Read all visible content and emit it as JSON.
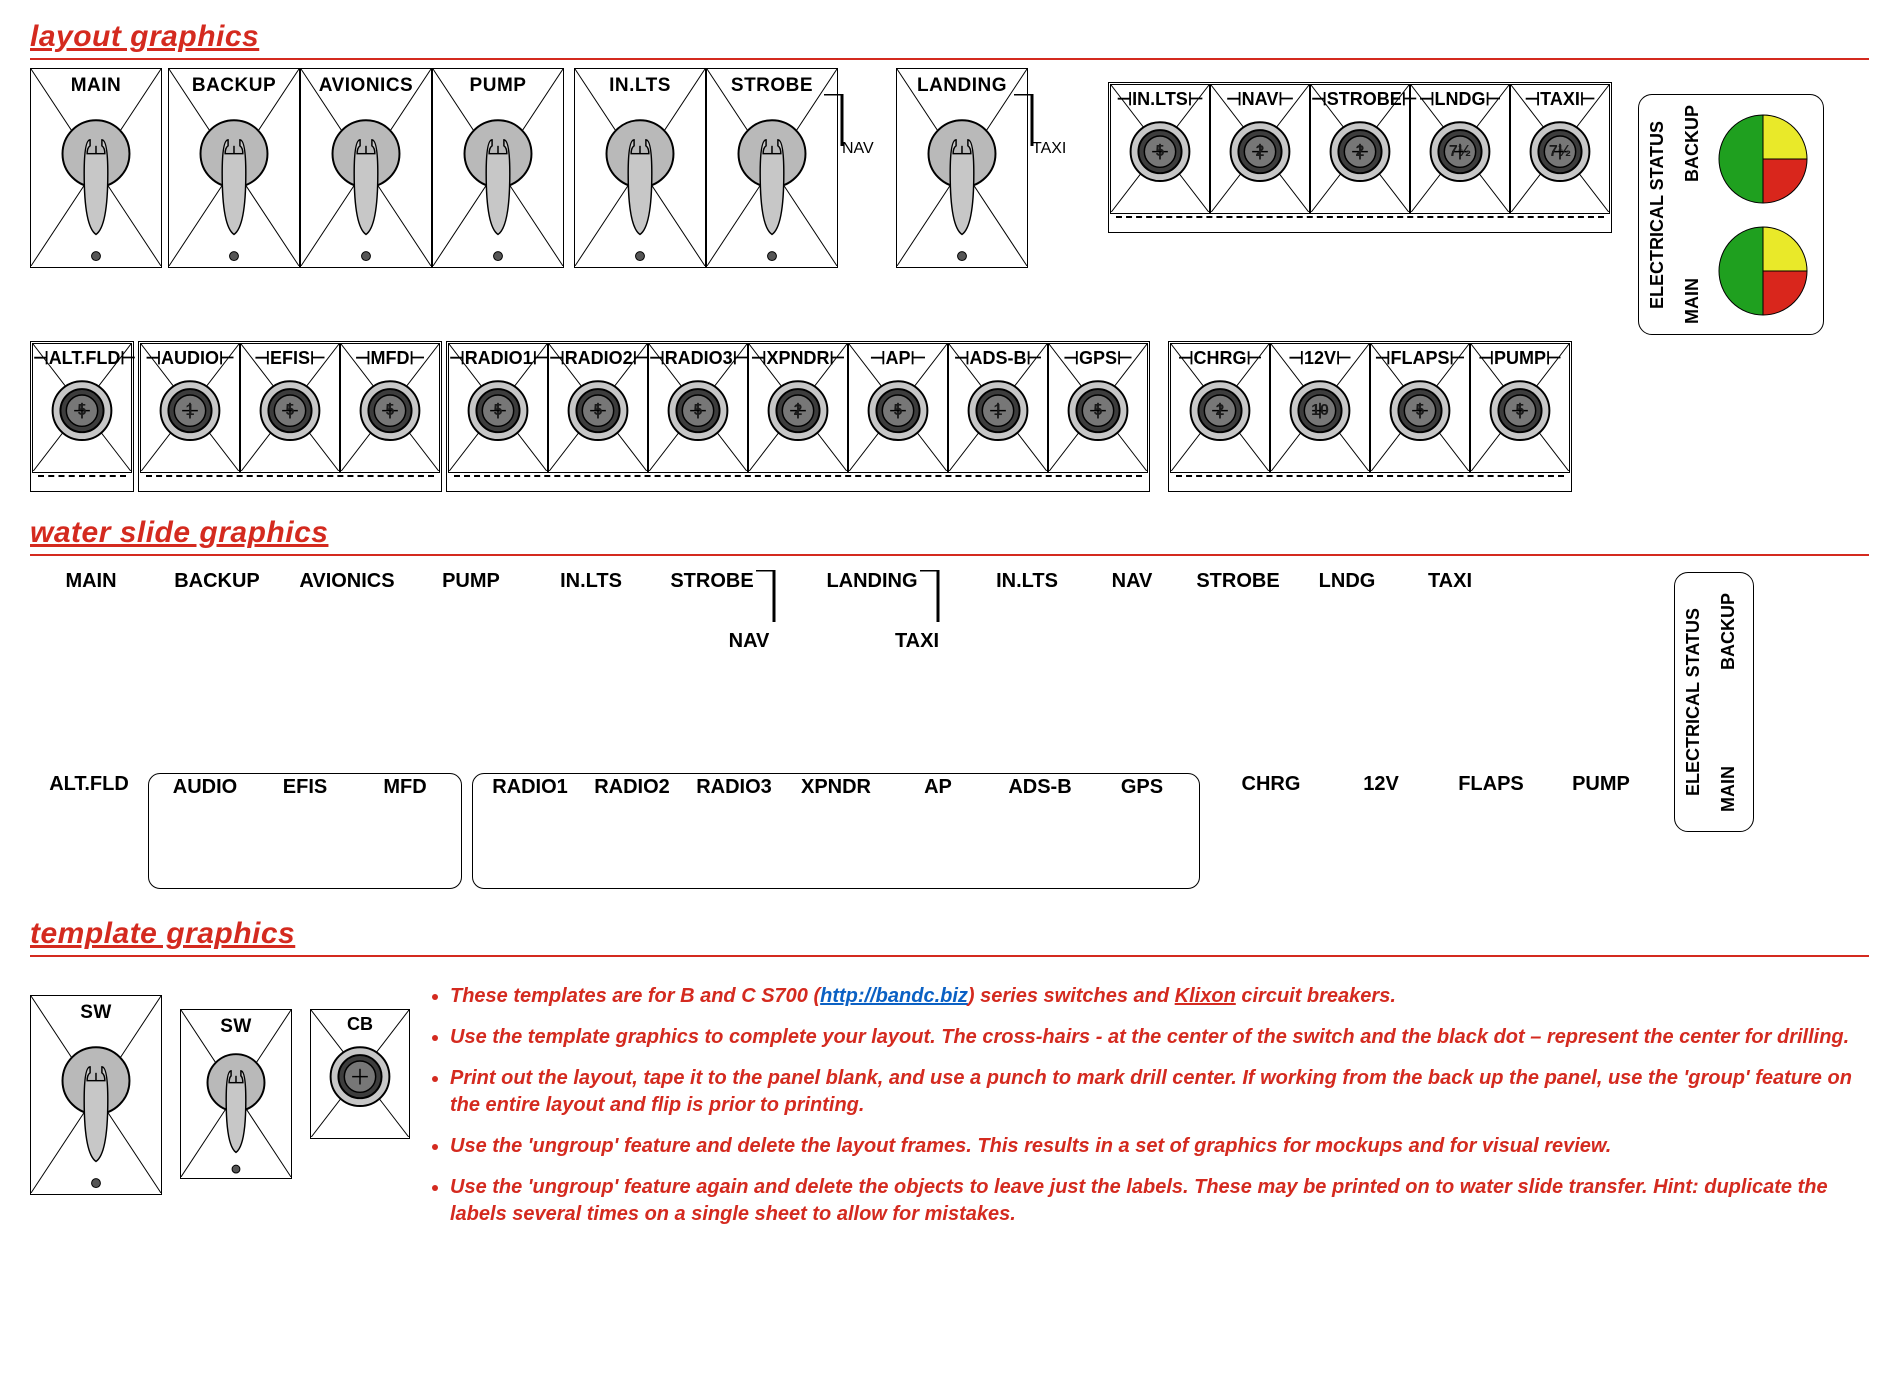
{
  "colors": {
    "red": "#d42a1f",
    "black": "#000000",
    "grey_light": "#c7c7c7",
    "grey_mid": "#b9b9b9",
    "grey_dark": "#707070",
    "pie_green": "#1fa01f",
    "pie_red": "#d9261c",
    "pie_yellow": "#e9e929",
    "link_blue": "#0b61c4"
  },
  "section_titles": {
    "layout": "layout graphics",
    "waterslide": "water slide graphics",
    "template": "template graphics",
    "title_fontsize": 30
  },
  "electrical_status": {
    "title": "ELECTRICAL STATUS",
    "top": "BACKUP",
    "bottom": "MAIN",
    "pie_sectors": [
      {
        "color": "#1fa01f",
        "start": -180,
        "end": 0
      },
      {
        "color": "#d9261c",
        "start": 90,
        "end": 180
      },
      {
        "color": "#e9e929",
        "start": 0,
        "end": 90
      }
    ],
    "pie_radius": 44
  },
  "toggles_row1": [
    {
      "label": "MAIN"
    },
    {
      "label": "BACKUP"
    },
    {
      "label": "AVIONICS"
    },
    {
      "label": "PUMP"
    },
    {
      "label": "IN.LTS"
    },
    {
      "label": "STROBE",
      "side": "NAV"
    },
    {
      "label": "LANDING",
      "side": "TAXI"
    }
  ],
  "breakers_top_group": [
    {
      "label": "IN.LTS",
      "amp": "5"
    },
    {
      "label": "NAV",
      "amp": "2"
    },
    {
      "label": "STROBE",
      "amp": "2"
    },
    {
      "label": "LNDG",
      "amp": "7½"
    },
    {
      "label": "TAXI",
      "amp": "7½"
    }
  ],
  "breakers_row2": {
    "single": {
      "label": "ALT.FLD",
      "amp": "5"
    },
    "group_a": [
      {
        "label": "AUDIO",
        "amp": "1"
      },
      {
        "label": "EFIS",
        "amp": "5"
      },
      {
        "label": "MFD",
        "amp": "5"
      }
    ],
    "group_b": [
      {
        "label": "RADIO1",
        "amp": "5"
      },
      {
        "label": "RADIO2",
        "amp": "5"
      },
      {
        "label": "RADIO3",
        "amp": "5"
      },
      {
        "label": "XPNDR",
        "amp": "2"
      },
      {
        "label": "AP",
        "amp": "5"
      },
      {
        "label": "ADS-B",
        "amp": "1"
      },
      {
        "label": "GPS",
        "amp": "5"
      }
    ],
    "group_c": [
      {
        "label": "CHRG",
        "amp": "2"
      },
      {
        "label": "12V",
        "amp": "10"
      },
      {
        "label": "FLAPS",
        "amp": "5"
      },
      {
        "label": "PUMP",
        "amp": "5"
      }
    ]
  },
  "waterslide": {
    "row1": [
      "MAIN",
      "BACKUP",
      "AVIONICS",
      "PUMP",
      "IN.LTS",
      "STROBE",
      "LANDING",
      "IN.LTS",
      "NAV",
      "STROBE",
      "LNDG",
      "TAXI"
    ],
    "nav_under": "NAV",
    "taxi_under": "TAXI",
    "row2_single": "ALT.FLD",
    "row2_group_a": [
      "AUDIO",
      "EFIS",
      "MFD"
    ],
    "row2_group_b": [
      "RADIO1",
      "RADIO2",
      "RADIO3",
      "XPNDR",
      "AP",
      "ADS-B",
      "GPS"
    ],
    "row2_loose": [
      "CHRG",
      "12V",
      "FLAPS",
      "PUMP"
    ]
  },
  "templates": {
    "toggle_label": "SW",
    "breaker_label": "CB"
  },
  "bullets": [
    {
      "pre": "These templates are for B and C S700 (",
      "link_text": "http://bandc.biz",
      "post": ") series switches and ",
      "em": "Klixon",
      "post2": " circuit breakers."
    },
    {
      "text": "Use the template graphics to complete your layout. The cross-hairs -  at the center of the switch and the black dot – represent the center for drilling."
    },
    {
      "text": "Print out the layout, tape it to the panel blank, and use a punch to mark drill center. If working from the back up the panel, use the 'group' feature on the entire layout and flip is prior to printing."
    },
    {
      "text": "Use the 'ungroup' feature and delete the layout frames. This results in a set of graphics for mockups and for visual review."
    },
    {
      "text": "Use the 'ungroup' feature again and delete the objects to leave just the labels. These may be printed on to water slide transfer. Hint: duplicate the labels several times on a single sheet to allow for mistakes."
    }
  ],
  "geometry": {
    "breaker_cell_w": 100,
    "breaker_cell_h": 130,
    "breaker_outer_r": 30,
    "breaker_ring_r": 22,
    "breaker_inner_r": 16,
    "toggle_body_r": 34,
    "toggle_lever_w": 18
  }
}
